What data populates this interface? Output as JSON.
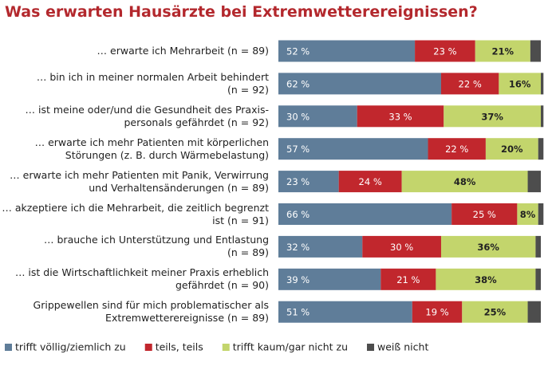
{
  "chart_data": {
    "type": "stacked-bar-horizontal",
    "title": "Was erwarten Hausärzte bei Extremwetterereignissen?",
    "categories": [
      "… erwarte ich Mehrarbeit (n = 89)",
      "… bin ich in meiner normalen Arbeit behindert\n(n = 92)",
      "… ist meine oder/und die Gesundheit des Praxis-\npersonals gefährdet (n = 92)",
      "… erwarte ich mehr Patienten mit körperlichen\nStörungen (z. B. durch Wärmebelastung)",
      "… erwarte ich mehr Patienten mit Panik, Verwirrung\nund Verhaltensänderungen (n = 89)",
      "… akzeptiere ich die Mehrarbeit, die zeitlich begrenzt\nist (n = 91)",
      "… brauche ich Unterstützung und Entlastung\n(n = 89)",
      "… ist die Wirtschaftlichkeit meiner Praxis erheblich\ngefährdet (n = 90)",
      "Grippewellen sind für mich problematischer als\nExtremwetterereignisse (n = 89)"
    ],
    "series": [
      {
        "name": "trifft völlig/ziemlich zu",
        "color": "#5f7d99",
        "values": [
          52,
          62,
          30,
          57,
          23,
          66,
          32,
          39,
          51
        ],
        "value_labels": [
          "52 %",
          "62 %",
          "30 %",
          "57 %",
          "23 %",
          "66 %",
          "32 %",
          "39 %",
          "51 %"
        ]
      },
      {
        "name": "teils, teils",
        "color": "#c1272d",
        "values": [
          23,
          22,
          33,
          22,
          24,
          25,
          30,
          21,
          19
        ],
        "value_labels": [
          "23 %",
          "22 %",
          "33 %",
          "22 %",
          "24 %",
          "25 %",
          "30 %",
          "21 %",
          "19 %"
        ]
      },
      {
        "name": "trifft kaum/gar nicht zu",
        "color": "#c3d56c",
        "values": [
          21,
          16,
          37,
          20,
          48,
          8,
          36,
          38,
          25
        ],
        "value_labels": [
          "21%",
          "16%",
          "37%",
          "20%",
          "48%",
          "8%",
          "36%",
          "38%",
          "25%"
        ]
      },
      {
        "name": "weiß nicht",
        "color": "#4d4d4d",
        "values": [
          4,
          1,
          1,
          2,
          5,
          2,
          2,
          2,
          5
        ]
      }
    ],
    "xlim": [
      0,
      100
    ]
  }
}
